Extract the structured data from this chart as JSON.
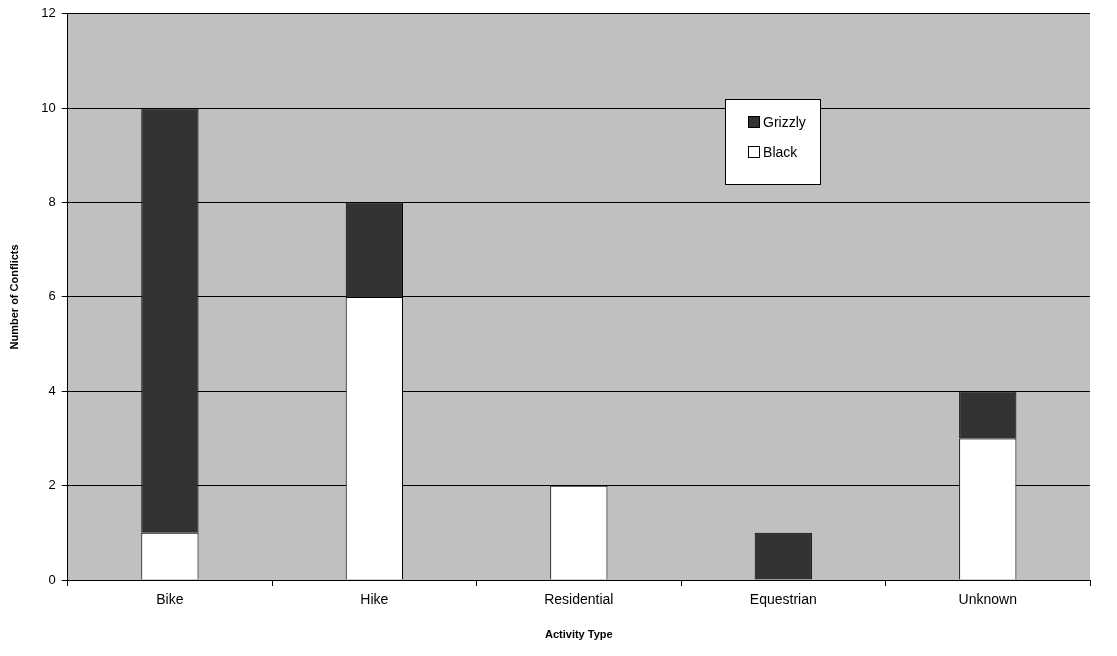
{
  "chart_data": {
    "type": "bar",
    "stacked": true,
    "xlabel": "Activity Type",
    "ylabel": "Number of Conflicts",
    "categories": [
      "Bike",
      "Hike",
      "Residential",
      "Equestrian",
      "Unknown"
    ],
    "series": [
      {
        "name": "Black",
        "color": "#ffffff",
        "values": [
          1,
          6,
          2,
          0,
          3
        ]
      },
      {
        "name": "Grizzly",
        "color": "#333333",
        "values": [
          9,
          2,
          0,
          1,
          1
        ]
      }
    ],
    "ylim": [
      0,
      12
    ],
    "yticks": [
      0,
      2,
      4,
      6,
      8,
      10,
      12
    ],
    "grid": "y",
    "legend": "top"
  }
}
